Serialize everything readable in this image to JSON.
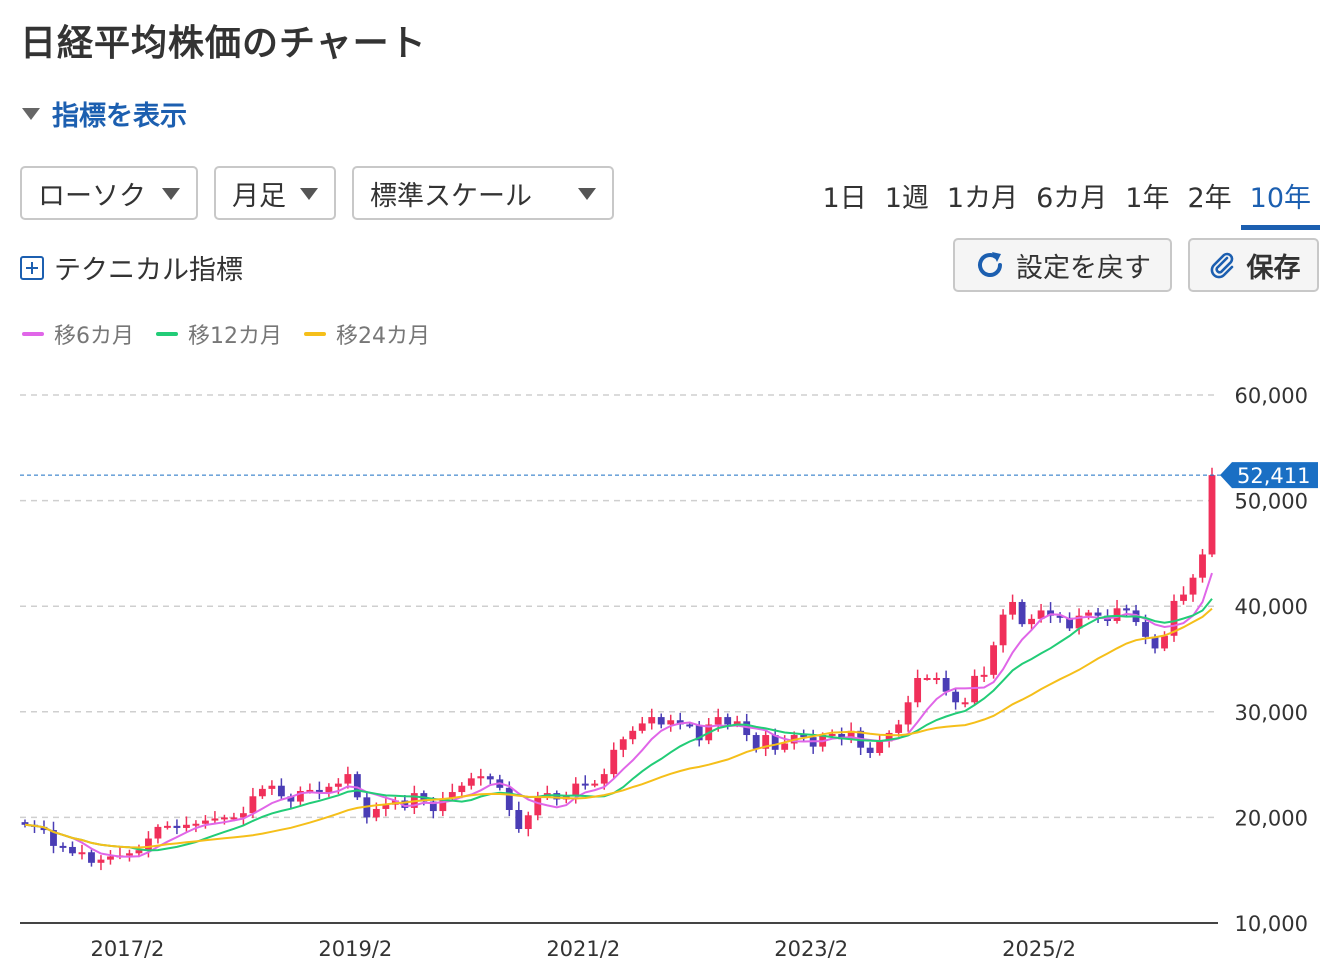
{
  "page": {
    "title": "日経平均株価のチャート"
  },
  "indicator_toggle": {
    "label": "指標を表示"
  },
  "selects": {
    "chart_type": "ローソク",
    "period": "月足",
    "scale": "標準スケール"
  },
  "ranges": [
    {
      "label": "1日",
      "active": false
    },
    {
      "label": "1週",
      "active": false
    },
    {
      "label": "1カ月",
      "active": false
    },
    {
      "label": "6カ月",
      "active": false
    },
    {
      "label": "1年",
      "active": false
    },
    {
      "label": "2年",
      "active": false
    },
    {
      "label": "10年",
      "active": true
    }
  ],
  "technical": {
    "label": "テクニカル指標"
  },
  "buttons": {
    "reset": "設定を戻す",
    "save": "保存"
  },
  "legend": [
    {
      "label": "移6カ月",
      "color": "#e066e8"
    },
    {
      "label": "移12カ月",
      "color": "#22cc77"
    },
    {
      "label": "移24カ月",
      "color": "#f5bf1a"
    }
  ],
  "colors": {
    "up": "#f0305a",
    "down": "#4a3db5",
    "accent": "#1c5fb0",
    "current": "#1a6fc4"
  },
  "chart_data": {
    "type": "candlestick",
    "yticks": [
      "60,000",
      "50,000",
      "40,000",
      "30,000",
      "20,000",
      "10,000"
    ],
    "ytick_values": [
      60000,
      50000,
      40000,
      30000,
      20000,
      10000
    ],
    "xticks": [
      "2017/2",
      "2019/2",
      "2021/2",
      "2023/2",
      "2025/2"
    ],
    "ylim": [
      10000,
      60000
    ],
    "current_value": 52411,
    "current_label": "52,411",
    "grid": true,
    "close": [
      19300,
      19100,
      18800,
      17300,
      17200,
      16600,
      16700,
      15700,
      16000,
      16300,
      16400,
      16600,
      16900,
      18000,
      19100,
      19200,
      19000,
      19300,
      19400,
      19700,
      19900,
      20000,
      20000,
      20400,
      22000,
      22700,
      23000,
      22000,
      21500,
      22500,
      22600,
      22300,
      22900,
      23200,
      24100,
      21900,
      20000,
      20800,
      21200,
      21600,
      20900,
      22300,
      21500,
      20600,
      21800,
      22400,
      23000,
      23700,
      23900,
      23600,
      22800,
      20700,
      18900,
      20200,
      21900,
      22300,
      21700,
      22000,
      23200,
      23100,
      23200,
      24100,
      26400,
      27400,
      28200,
      28900,
      29500,
      28800,
      29200,
      28800,
      28700,
      27300,
      28800,
      29500,
      28800,
      29100,
      27800,
      26500,
      27800,
      26400,
      27000,
      27800,
      27600,
      26700,
      27800,
      27900,
      27400,
      28200,
      26600,
      26100,
      27200,
      28000,
      28800,
      30900,
      33200,
      33200,
      33200,
      31900,
      30900,
      30900,
      33400,
      33500,
      36300,
      39200,
      40400,
      38300,
      38800,
      39600,
      39100,
      38900,
      37900,
      39100,
      39400,
      39100,
      38600,
      39800,
      39600,
      38500,
      37100,
      36000,
      37200,
      40500,
      41100,
      42700,
      44900,
      52411
    ]
  }
}
